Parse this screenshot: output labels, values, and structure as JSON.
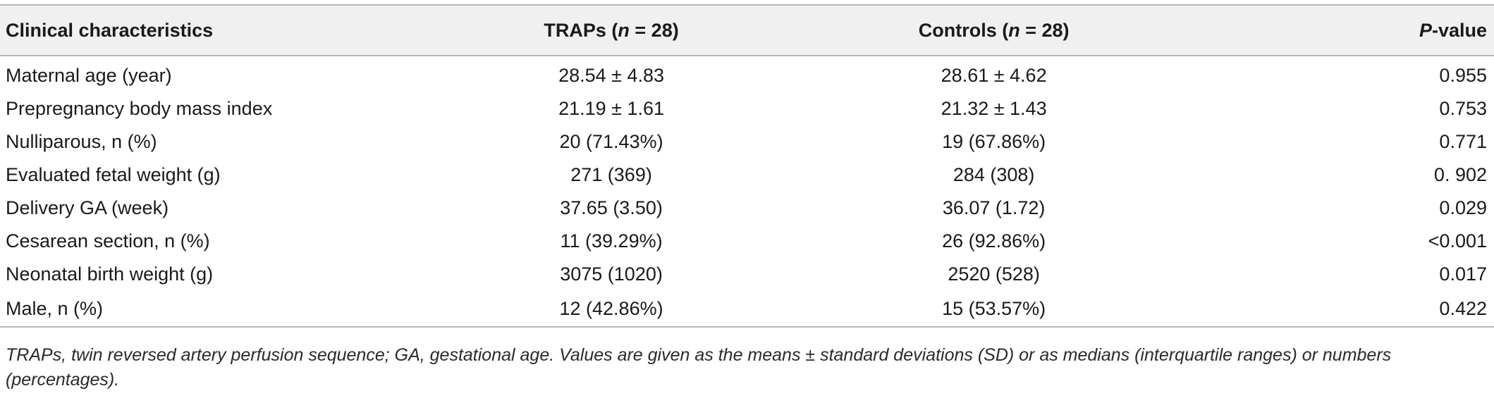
{
  "table": {
    "headers": {
      "characteristics": "Clinical characteristics",
      "traps_label": "TRAPs (",
      "traps_n": "n",
      "traps_count": " = 28)",
      "controls_label": "Controls (",
      "controls_n": "n",
      "controls_count": " = 28)",
      "p_letter": "P",
      "p_rest": "-value"
    },
    "rows": [
      {
        "characteristic": "Maternal age (year)",
        "traps": "28.54 ± 4.83",
        "controls": "28.61 ± 4.62",
        "p": "0.955"
      },
      {
        "characteristic": "Prepregnancy body mass index",
        "traps": "21.19 ± 1.61",
        "controls": "21.32 ± 1.43",
        "p": "0.753"
      },
      {
        "characteristic": "Nulliparous, n (%)",
        "traps": "20 (71.43%)",
        "controls": "19 (67.86%)",
        "p": "0.771"
      },
      {
        "characteristic": "Evaluated fetal weight (g)",
        "traps": "271 (369)",
        "controls": "284 (308)",
        "p": "0. 902"
      },
      {
        "characteristic": "Delivery GA (week)",
        "traps": "37.65 (3.50)",
        "controls": "36.07 (1.72)",
        "p": "0.029"
      },
      {
        "characteristic": "Cesarean section, n (%)",
        "traps": "11 (39.29%)",
        "controls": "26 (92.86%)",
        "p": "<0.001"
      },
      {
        "characteristic": "Neonatal birth weight (g)",
        "traps": "3075 (1020)",
        "controls": "2520 (528)",
        "p": "0.017"
      },
      {
        "characteristic": "Male, n (%)",
        "traps": "12 (42.86%)",
        "controls": "15 (53.57%)",
        "p": "0.422"
      }
    ]
  },
  "footnote": "TRAPs, twin reversed artery perfusion sequence; GA, gestational age. Values are given as the means ± standard deviations (SD) or as medians (interquartile ranges) or numbers (percentages)."
}
